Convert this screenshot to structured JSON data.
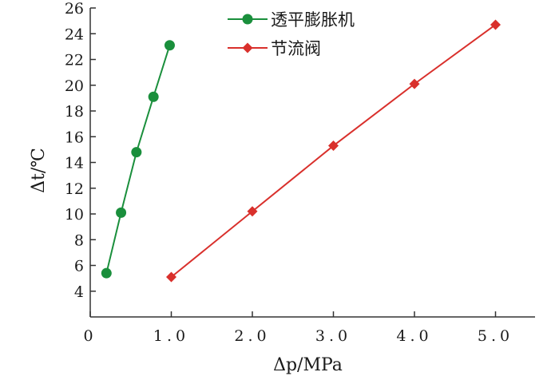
{
  "chart_data": {
    "type": "line",
    "xlabel": "Δp/MPa",
    "ylabel": "Δt/℃",
    "xlim": [
      0,
      5.5
    ],
    "ylim": [
      2,
      26
    ],
    "x_ticks": [
      0,
      1.0,
      2.0,
      3.0,
      4.0,
      5.0
    ],
    "x_tick_labels": [
      "0",
      "1.0",
      "2.0",
      "3.0",
      "4.0",
      "5.0"
    ],
    "y_ticks": [
      4,
      6,
      8,
      10,
      12,
      14,
      16,
      18,
      20,
      22,
      24,
      26
    ],
    "y_tick_labels": [
      "4",
      "6",
      "8",
      "10",
      "12",
      "14",
      "16",
      "18",
      "20",
      "22",
      "24",
      "26"
    ],
    "legend_position": "top-center",
    "grid": false,
    "series": [
      {
        "name": "透平膨胀机",
        "color": "#1a8f3c",
        "marker": "circle",
        "x": [
          0.2,
          0.38,
          0.57,
          0.78,
          0.98
        ],
        "y": [
          5.4,
          10.1,
          14.8,
          19.1,
          23.1
        ]
      },
      {
        "name": "节流阀",
        "color": "#d9302c",
        "marker": "diamond",
        "x": [
          1.0,
          2.0,
          3.0,
          4.0,
          5.0
        ],
        "y": [
          5.1,
          10.2,
          15.3,
          20.1,
          24.7
        ]
      }
    ]
  }
}
